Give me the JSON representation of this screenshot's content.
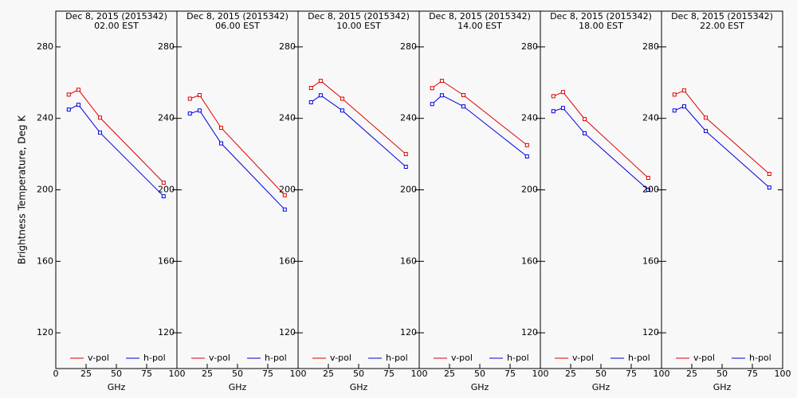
{
  "chart_data": [
    {
      "type": "line",
      "title": "Dec  8, 2015 (2015342)",
      "subtitle": "02.00 EST",
      "ylabel": "Brightness Temperature, Deg K",
      "xlabel": "GHz",
      "x": [
        10.7,
        18.7,
        36.5,
        89.0
      ],
      "xlim": [
        0,
        100
      ],
      "xticks": [
        0,
        25,
        50,
        75,
        100
      ],
      "ylim": [
        100,
        300
      ],
      "yticks": [
        120,
        160,
        200,
        240,
        280
      ],
      "series": [
        {
          "name": "v-pol",
          "color": "#e00000",
          "values": [
            253.3,
            256.0,
            240.4,
            204.0
          ]
        },
        {
          "name": "h-pol",
          "color": "#0000e0",
          "values": [
            244.9,
            247.6,
            232.0,
            196.4
          ]
        }
      ]
    },
    {
      "type": "line",
      "title": "Dec  8, 2015 (2015342)",
      "subtitle": "06.00 EST",
      "xlabel": "GHz",
      "x": [
        10.7,
        18.7,
        36.5,
        89.0
      ],
      "xlim": [
        0,
        100
      ],
      "xticks": [
        25,
        50,
        75,
        100
      ],
      "ylim": [
        100,
        300
      ],
      "yticks": [
        120,
        160,
        200,
        240,
        280
      ],
      "series": [
        {
          "name": "v-pol",
          "color": "#e00000",
          "values": [
            251.0,
            253.0,
            234.7,
            197.0
          ]
        },
        {
          "name": "h-pol",
          "color": "#0000e0",
          "values": [
            242.7,
            244.4,
            226.0,
            189.0
          ]
        }
      ]
    },
    {
      "type": "line",
      "title": "Dec  8, 2015 (2015342)",
      "subtitle": "10.00 EST",
      "xlabel": "GHz",
      "x": [
        10.7,
        18.7,
        36.5,
        89.0
      ],
      "xlim": [
        0,
        100
      ],
      "xticks": [
        25,
        50,
        75,
        100
      ],
      "ylim": [
        100,
        300
      ],
      "yticks": [
        120,
        160,
        200,
        240,
        280
      ],
      "series": [
        {
          "name": "v-pol",
          "color": "#e00000",
          "values": [
            257.0,
            261.0,
            251.0,
            220.0
          ]
        },
        {
          "name": "h-pol",
          "color": "#0000e0",
          "values": [
            249.0,
            252.9,
            244.4,
            212.9
          ]
        }
      ]
    },
    {
      "type": "line",
      "title": "Dec  8, 2015 (2015342)",
      "subtitle": "14.00 EST",
      "xlabel": "GHz",
      "x": [
        10.7,
        18.7,
        36.5,
        89.0
      ],
      "xlim": [
        0,
        100
      ],
      "xticks": [
        25,
        50,
        75,
        100
      ],
      "ylim": [
        100,
        300
      ],
      "yticks": [
        120,
        160,
        200,
        240,
        280
      ],
      "series": [
        {
          "name": "v-pol",
          "color": "#e00000",
          "values": [
            256.9,
            261.0,
            253.0,
            225.0
          ]
        },
        {
          "name": "h-pol",
          "color": "#0000e0",
          "values": [
            248.0,
            252.9,
            246.7,
            218.7
          ]
        }
      ]
    },
    {
      "type": "line",
      "title": "Dec  8, 2015 (2015342)",
      "subtitle": "18.00 EST",
      "xlabel": "GHz",
      "x": [
        10.7,
        18.7,
        36.5,
        89.0
      ],
      "xlim": [
        0,
        100
      ],
      "xticks": [
        25,
        50,
        75,
        100
      ],
      "ylim": [
        100,
        300
      ],
      "yticks": [
        120,
        160,
        200,
        240,
        280
      ],
      "series": [
        {
          "name": "v-pol",
          "color": "#e00000",
          "values": [
            252.4,
            254.7,
            239.6,
            206.7
          ]
        },
        {
          "name": "h-pol",
          "color": "#0000e0",
          "values": [
            244.0,
            245.8,
            231.6,
            200.0
          ]
        }
      ]
    },
    {
      "type": "line",
      "title": "Dec  8, 2015 (2015342)",
      "subtitle": "22.00 EST",
      "xlabel": "GHz",
      "x": [
        10.7,
        18.7,
        36.5,
        89.0
      ],
      "xlim": [
        0,
        100
      ],
      "xticks": [
        25,
        50,
        75,
        100
      ],
      "ylim": [
        100,
        300
      ],
      "yticks": [
        120,
        160,
        200,
        240,
        280
      ],
      "series": [
        {
          "name": "v-pol",
          "color": "#e00000",
          "values": [
            253.3,
            255.6,
            240.4,
            208.9
          ]
        },
        {
          "name": "h-pol",
          "color": "#0000e0",
          "values": [
            244.4,
            246.7,
            232.9,
            201.3
          ]
        }
      ]
    }
  ]
}
